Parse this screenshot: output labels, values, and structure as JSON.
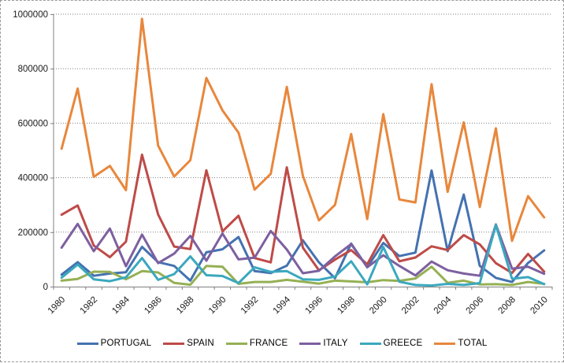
{
  "chart_data": {
    "type": "line",
    "title": "",
    "xlabel": "",
    "ylabel": "",
    "x": [
      1980,
      1981,
      1982,
      1983,
      1984,
      1985,
      1986,
      1987,
      1988,
      1989,
      1990,
      1991,
      1992,
      1993,
      1994,
      1995,
      1996,
      1997,
      1998,
      1999,
      2000,
      2001,
      2002,
      2003,
      2004,
      2005,
      2006,
      2007,
      2008,
      2009,
      2010
    ],
    "x_tick_labels": [
      "1980",
      "1982",
      "1984",
      "1986",
      "1988",
      "1990",
      "1992",
      "1994",
      "1996",
      "1998",
      "2000",
      "2002",
      "2004",
      "2006",
      "2008",
      "2010"
    ],
    "y_ticks": [
      0,
      200000,
      400000,
      600000,
      800000,
      1000000
    ],
    "y_tick_labels": [
      "0",
      "200000",
      "400000",
      "600000",
      "800000",
      "1000000"
    ],
    "ylim": [
      0,
      1000000
    ],
    "grid": "horizontal-dotted",
    "legend_position": "bottom",
    "axis_color": "#808080",
    "grid_color": "#808080",
    "series": [
      {
        "name": "PORTUGAL",
        "color": "#4472B0",
        "values": [
          44000,
          90000,
          40000,
          48000,
          53000,
          146000,
          90000,
          76000,
          22000,
          126000,
          137000,
          182000,
          57000,
          50000,
          77000,
          170000,
          89000,
          31000,
          158000,
          71000,
          160000,
          112000,
          125000,
          426000,
          130000,
          338000,
          76000,
          32000,
          17000,
          87000,
          133000
        ]
      },
      {
        "name": "SPAIN",
        "color": "#BE4B48",
        "values": [
          264000,
          298000,
          151000,
          108000,
          165000,
          484000,
          265000,
          147000,
          138000,
          427000,
          203000,
          260000,
          105000,
          89000,
          438000,
          143000,
          60000,
          99000,
          134000,
          82000,
          189000,
          93000,
          107000,
          148000,
          134000,
          189000,
          155000,
          86000,
          50000,
          120000,
          55000
        ]
      },
      {
        "name": "FRANCE",
        "color": "#95B054",
        "values": [
          22000,
          28000,
          55000,
          54000,
          27000,
          57000,
          52000,
          14000,
          7000,
          76000,
          73000,
          10000,
          17000,
          17000,
          25000,
          18000,
          11000,
          22000,
          19000,
          16000,
          24000,
          21000,
          30000,
          73000,
          14000,
          22000,
          8000,
          9000,
          6000,
          17000,
          10000
        ]
      },
      {
        "name": "ITALY",
        "color": "#7D60A0",
        "values": [
          143000,
          230000,
          130000,
          213000,
          75000,
          191000,
          86000,
          121000,
          186000,
          95000,
          195000,
          100000,
          106000,
          204000,
          136000,
          49000,
          58000,
          111000,
          156000,
          71000,
          115000,
          76000,
          41000,
          92000,
          60000,
          48000,
          40000,
          228000,
          66000,
          73000,
          47000
        ]
      },
      {
        "name": "GREECE",
        "color": "#3BA8BE",
        "values": [
          33000,
          81000,
          27000,
          20000,
          34000,
          105000,
          25000,
          46000,
          111000,
          42000,
          39000,
          13000,
          71000,
          54000,
          57000,
          27000,
          25000,
          37000,
          93000,
          8000,
          145000,
          18000,
          6000,
          4000,
          10000,
          6000,
          13000,
          226000,
          29000,
          35000,
          9000
        ]
      },
      {
        "name": "TOTAL",
        "color": "#E8873C",
        "values": [
          506000,
          727000,
          403000,
          443000,
          354000,
          983000,
          518000,
          404000,
          464000,
          766000,
          647000,
          565000,
          356000,
          414000,
          733000,
          407000,
          243000,
          300000,
          560000,
          248000,
          633000,
          320000,
          309000,
          743000,
          348000,
          603000,
          292000,
          581000,
          168000,
          332000,
          254000
        ]
      }
    ]
  }
}
